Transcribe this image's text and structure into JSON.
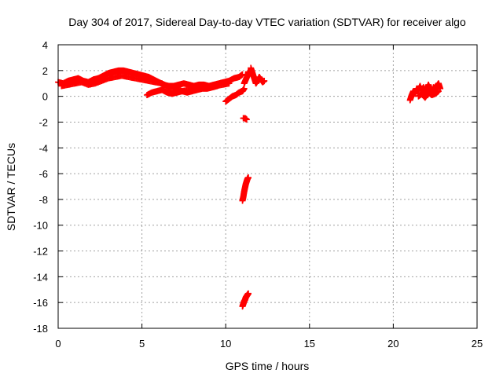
{
  "chart_data": {
    "type": "scatter",
    "title": "Day 304 of 2017, Sidereal Day-to-day VTEC variation (SDTVAR) for receiver algo",
    "xlabel": "GPS time / hours",
    "ylabel": "SDTVAR / TECUs",
    "xlim": [
      0,
      25
    ],
    "ylim": [
      -18,
      4
    ],
    "xticks": [
      0,
      5,
      10,
      15,
      20,
      25
    ],
    "yticks": [
      4,
      2,
      0,
      -2,
      -4,
      -6,
      -8,
      -10,
      -12,
      -14,
      -16,
      -18
    ],
    "grid": true,
    "marker": "plus",
    "color": "#ff0000",
    "series": [
      {
        "name": "SDTVAR",
        "segments": [
          {
            "x": [
              0.0,
              0.3,
              0.6,
              0.9,
              1.2,
              1.5,
              1.8,
              2.1,
              2.4,
              2.7,
              3.0,
              3.3,
              3.6,
              3.9,
              4.2,
              4.5,
              4.8,
              5.1,
              5.4,
              5.7,
              6.0,
              6.3,
              6.6,
              6.9,
              7.2,
              7.5,
              7.8,
              8.1,
              8.4,
              8.7,
              9.0,
              9.3,
              9.6,
              9.9,
              10.2,
              10.5,
              10.8,
              11.0
            ],
            "y": [
              1.1,
              1.0,
              1.2,
              1.3,
              1.4,
              1.2,
              1.1,
              1.3,
              1.4,
              1.6,
              1.8,
              1.9,
              2.0,
              2.0,
              1.9,
              1.8,
              1.7,
              1.6,
              1.5,
              1.3,
              1.1,
              0.9,
              0.8,
              0.8,
              0.9,
              1.0,
              0.9,
              0.8,
              0.9,
              0.9,
              0.8,
              0.9,
              1.0,
              1.1,
              1.2,
              1.4,
              1.5,
              1.7
            ]
          },
          {
            "x": [
              0.2,
              0.6,
              1.0,
              1.4,
              1.8,
              2.2,
              2.6,
              3.0,
              3.4,
              3.8,
              4.2,
              4.6,
              5.0,
              5.4,
              5.8,
              6.2,
              6.6,
              7.0,
              7.4,
              7.8,
              8.2,
              8.6,
              9.0,
              9.4,
              9.8,
              10.2
            ],
            "y": [
              0.8,
              0.9,
              1.0,
              1.1,
              0.9,
              1.0,
              1.2,
              1.4,
              1.5,
              1.6,
              1.5,
              1.4,
              1.3,
              1.2,
              1.1,
              1.0,
              0.7,
              0.6,
              0.4,
              0.5,
              0.6,
              0.7,
              0.7,
              0.8,
              0.9,
              1.0
            ]
          },
          {
            "x": [
              5.3,
              5.6,
              5.9,
              6.2,
              6.5,
              6.8,
              7.1,
              7.4,
              7.7,
              8.0,
              8.3,
              8.6,
              8.9,
              9.2,
              9.5
            ],
            "y": [
              0.1,
              0.3,
              0.4,
              0.5,
              0.3,
              0.2,
              0.3,
              0.4,
              0.3,
              0.4,
              0.5,
              0.6,
              0.6,
              0.7,
              0.8
            ]
          },
          {
            "x": [
              10.0,
              10.2,
              10.4,
              10.6,
              10.8,
              11.0,
              11.1
            ],
            "y": [
              -0.4,
              -0.2,
              0.0,
              0.1,
              0.3,
              0.4,
              0.6
            ]
          },
          {
            "x": [
              11.1,
              11.2,
              11.3,
              11.35
            ],
            "y": [
              1.0,
              1.3,
              1.6,
              1.9
            ]
          },
          {
            "x": [
              11.5,
              11.6,
              11.7,
              11.8,
              11.9,
              12.0,
              12.1,
              12.2,
              12.3
            ],
            "y": [
              2.2,
              1.8,
              1.4,
              1.0,
              1.2,
              1.5,
              1.3,
              1.1,
              1.2
            ]
          },
          {
            "x": [
              11.05,
              11.15,
              11.25
            ],
            "y": [
              -1.7,
              -1.7,
              -1.8
            ]
          },
          {
            "x": [
              11.0,
              11.05,
              11.1,
              11.15,
              11.2,
              11.25,
              11.3,
              11.35
            ],
            "y": [
              -8.1,
              -7.8,
              -7.4,
              -7.1,
              -6.8,
              -6.6,
              -6.4,
              -6.3
            ]
          },
          {
            "x": [
              11.0,
              11.05,
              11.1,
              11.15,
              11.2,
              11.25,
              11.3,
              11.35
            ],
            "y": [
              -16.3,
              -16.1,
              -15.9,
              -15.8,
              -15.6,
              -15.5,
              -15.4,
              -15.3
            ]
          },
          {
            "x": [
              21.0,
              21.1,
              21.2,
              21.3,
              21.4,
              21.5,
              21.6,
              21.7,
              21.8,
              21.9,
              22.0,
              22.1,
              22.2,
              22.3,
              22.4,
              22.5,
              22.6,
              22.7,
              22.8
            ],
            "y": [
              -0.3,
              0.1,
              0.4,
              0.2,
              0.6,
              0.5,
              0.8,
              0.4,
              0.7,
              0.3,
              0.6,
              0.9,
              0.5,
              0.2,
              0.7,
              0.4,
              0.8,
              1.0,
              0.6
            ]
          },
          {
            "x": [
              21.5,
              21.7,
              21.9,
              22.1,
              22.3,
              22.5,
              22.7
            ],
            "y": [
              0.0,
              0.2,
              -0.1,
              0.3,
              0.1,
              0.2,
              0.4
            ]
          }
        ]
      }
    ]
  }
}
